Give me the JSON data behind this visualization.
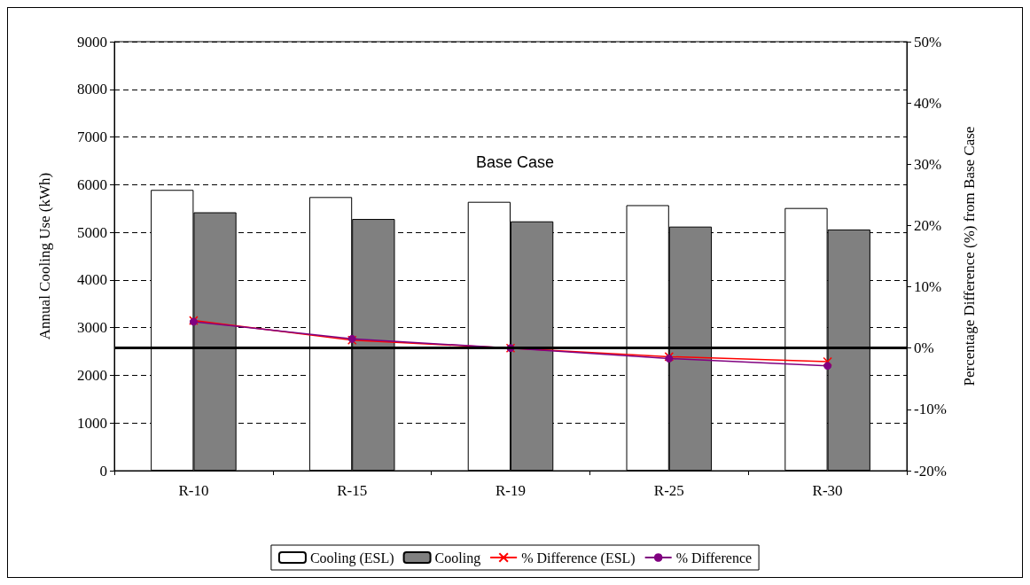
{
  "chart_data": {
    "type": "bar",
    "categories": [
      "R-10",
      "R-15",
      "R-19",
      "R-25",
      "R-30"
    ],
    "ylabel": "Annual Cooling Use (kWh)",
    "y2label": "Percentage Difference (%) from Base Case",
    "ylim": [
      0,
      9000
    ],
    "yticks": [
      0,
      1000,
      2000,
      3000,
      4000,
      5000,
      6000,
      7000,
      8000,
      9000
    ],
    "y2lim": [
      -20,
      50
    ],
    "y2ticks": [
      {
        "value": -20,
        "label": "-20%"
      },
      {
        "value": -10,
        "label": "-10%"
      },
      {
        "value": 0,
        "label": "0%"
      },
      {
        "value": 10,
        "label": "10%"
      },
      {
        "value": 20,
        "label": "20%"
      },
      {
        "value": 30,
        "label": "30%"
      },
      {
        "value": 40,
        "label": "40%"
      },
      {
        "value": 50,
        "label": "50%"
      }
    ],
    "series": [
      {
        "name": "Cooling (ESL)",
        "color": "#ffffff",
        "values": [
          5890,
          5740,
          5640,
          5570,
          5510
        ]
      },
      {
        "name": "Cooling",
        "color": "#808080",
        "values": [
          5420,
          5280,
          5230,
          5120,
          5060
        ]
      },
      {
        "name": "% Difference (ESL)",
        "type": "line",
        "axis": "y2",
        "marker": "cross",
        "color": "#ff0000",
        "values": [
          4.5,
          1.3,
          0,
          -1.4,
          -2.2
        ]
      },
      {
        "name": "% Difference",
        "type": "line",
        "axis": "y2",
        "marker": "circle",
        "color": "#800080",
        "values": [
          4.3,
          1.5,
          0,
          -1.7,
          -2.9
        ]
      }
    ],
    "ref_lines": [
      {
        "axis": "y2",
        "value": 0,
        "color": "#000000"
      }
    ],
    "annotations": [
      "Base Case"
    ],
    "grid": "y",
    "legend": "bottom"
  }
}
